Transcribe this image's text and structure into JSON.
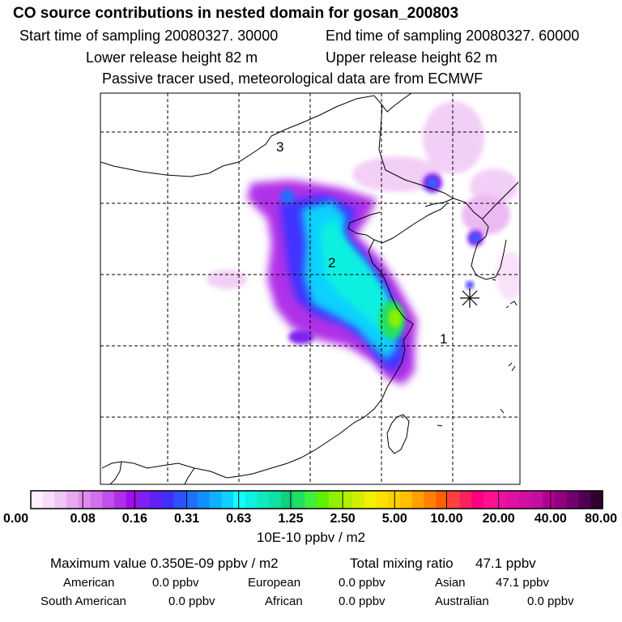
{
  "header": {
    "title": "CO  source contributions in nested domain for gosan_200803",
    "start": "Start time of sampling 20080327. 30000",
    "end": "End time of sampling 20080327. 60000",
    "lower": "Lower release height   82 m",
    "upper": "Upper release height   62 m",
    "tracer": "Passive tracer used, meteorological data are from ECMWF"
  },
  "chart_data": {
    "type": "heatmap",
    "title": "CO  source contributions in nested domain for gosan_200803",
    "map_labels": [
      "1",
      "2",
      "3"
    ],
    "grid": true,
    "colorbar": {
      "tick_labels": [
        "0.00",
        "0.08",
        "0.16",
        "0.31",
        "0.63",
        "1.25",
        "2.50",
        "5.00",
        "10.00",
        "20.00",
        "40.00",
        "80.00"
      ],
      "tick_values": [
        0.0,
        0.08,
        0.16,
        0.31,
        0.63,
        1.25,
        2.5,
        5.0,
        10.0,
        20.0,
        40.0,
        80.0
      ],
      "units": "10E-10 ppbv / m2",
      "colors": [
        "#fff0ff",
        "#f8dcf8",
        "#f0c4f4",
        "#e8a8f0",
        "#e08cee",
        "#d070ec",
        "#c050ea",
        "#b030e8",
        "#a010e8",
        "#8020f0",
        "#6020f8",
        "#4030ff",
        "#3050ff",
        "#2070ff",
        "#1090ff",
        "#10b0ff",
        "#10d0ff",
        "#10ffff",
        "#10f0e0",
        "#10e8c0",
        "#10e0a0",
        "#10d080",
        "#20e060",
        "#40f040",
        "#60f000",
        "#90f000",
        "#b0f000",
        "#d0f000",
        "#f0f000",
        "#ffe000",
        "#ffd000",
        "#ffc000",
        "#ffa000",
        "#ff8000",
        "#ff6000",
        "#ff4040",
        "#ff2060",
        "#ff0080",
        "#ff1090",
        "#f010a0",
        "#e010a0",
        "#d010a0",
        "#c010a0",
        "#b00090",
        "#900080",
        "#700070",
        "#500050",
        "#300030"
      ]
    }
  },
  "footer": {
    "max_value": "Maximum value  0.350E-09 ppbv / m2",
    "total_label": "Total mixing ratio",
    "total_value": "47.1 ppbv",
    "regions": [
      {
        "name": "American",
        "value": "0.0 ppbv"
      },
      {
        "name": "European",
        "value": "0.0 ppbv"
      },
      {
        "name": "Asian",
        "value": "47.1 ppbv"
      },
      {
        "name": "South American",
        "value": "0.0 ppbv"
      },
      {
        "name": "African",
        "value": "0.0 ppbv"
      },
      {
        "name": "Australian",
        "value": "0.0 ppbv"
      }
    ]
  }
}
